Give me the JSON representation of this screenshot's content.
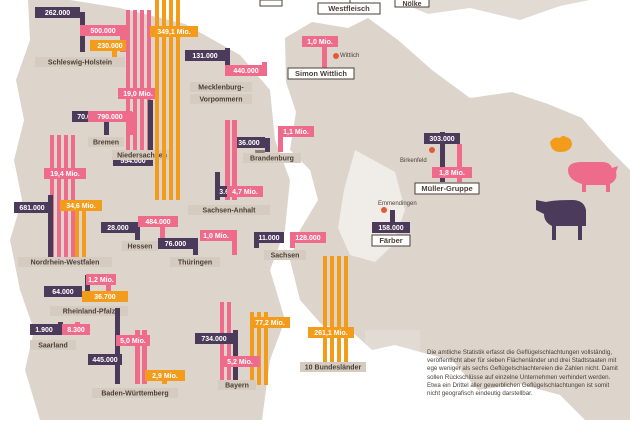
{
  "colors": {
    "pig": "#ee6b8b",
    "cattle": "#4b3a5a",
    "poultry": "#f39c1c",
    "state_fill": "#ddd5cc",
    "state_label": "#d6cbc0",
    "label_text": "#4b3f35",
    "line": "#4b3f35",
    "pin": "#e25a3a"
  },
  "company_labels": [
    {
      "name": "Westfleisch"
    },
    {
      "name": "Nölke"
    },
    {
      "name": "Simon Wittlich"
    },
    {
      "name": "Müller-Gruppe"
    },
    {
      "name": "Färber"
    }
  ],
  "place_names": {
    "wittlich": "Wittlich",
    "birkenfeld": "Birkenfeld",
    "emmendingen": "Emmendingen"
  },
  "footnote": "Die amtliche Statistik erfasst die Geflügelschlachtungen vollständig, veröffentlicht aber für sieben Flächenländer und drei Stadtstaaten mit ege weniger als sechs Geflügelschlachtereien die Zahlen nicht. Damit sollen Rückschlüsse auf einzelne Unternehmen verhindert werden. Etwa ein Drittel aller gewerblichen Geflügelschlachtungen ist somit nicht geografisch eindeutig darstellbar.",
  "chart_data": {
    "type": "bar",
    "series_colors": {
      "cattle": "#4b3a5a",
      "pig": "#ee6b8b",
      "poultry": "#f39c1c"
    },
    "regions": [
      {
        "name": "Schleswig-Holstein",
        "cattle": "262.000",
        "pig": "500.000",
        "poultry": "230.000"
      },
      {
        "name": "Mecklenburg-Vorpommern",
        "cattle": "131.000",
        "pig": "440.000",
        "poultry": "349,1 Mio."
      },
      {
        "name": "Bremen",
        "cattle": "70.000",
        "pig": "790.000"
      },
      {
        "name": "Niedersachsen",
        "cattle": "554.000",
        "pig": "19,0 Mio."
      },
      {
        "name": "Brandenburg",
        "cattle": "36.000",
        "pig": "1,1 Mio."
      },
      {
        "name": "Sachsen-Anhalt",
        "cattle": "3.600",
        "pig": "4,7 Mio."
      },
      {
        "name": "Nordrhein-Westfalen",
        "cattle": "681.000",
        "pig": "19,4 Mio.",
        "poultry": "34,6 Mio."
      },
      {
        "name": "Hessen",
        "cattle": "28.000",
        "pig": "484.000"
      },
      {
        "name": "Thüringen",
        "cattle": "76.000",
        "pig": "1,0 Mio."
      },
      {
        "name": "Sachsen",
        "cattle": "11.000",
        "pig": "128.000"
      },
      {
        "name": "Rheinland-Pfalz",
        "cattle": "64.000",
        "pig": "1,2 Mio.",
        "poultry": "36.700"
      },
      {
        "name": "Saarland",
        "cattle": "1.900",
        "pig": "8.300"
      },
      {
        "name": "Baden-Württemberg",
        "cattle": "445.000",
        "pig": "5,0 Mio.",
        "poultry": "2,9 Mio."
      },
      {
        "name": "Bayern",
        "cattle": "734.000",
        "pig": "5,2 Mio.",
        "poultry": "77,2 Mio."
      },
      {
        "name": "10 Bundesländer",
        "poultry": "261,1 Mio."
      }
    ],
    "companies": [
      {
        "name": "Müller-Gruppe",
        "cattle": "303.000",
        "pig": "1,8 Mio."
      },
      {
        "name": "Simon Wittlich",
        "pig": "1,0 Mio."
      },
      {
        "name": "Färber",
        "cattle": "158.000"
      }
    ]
  }
}
